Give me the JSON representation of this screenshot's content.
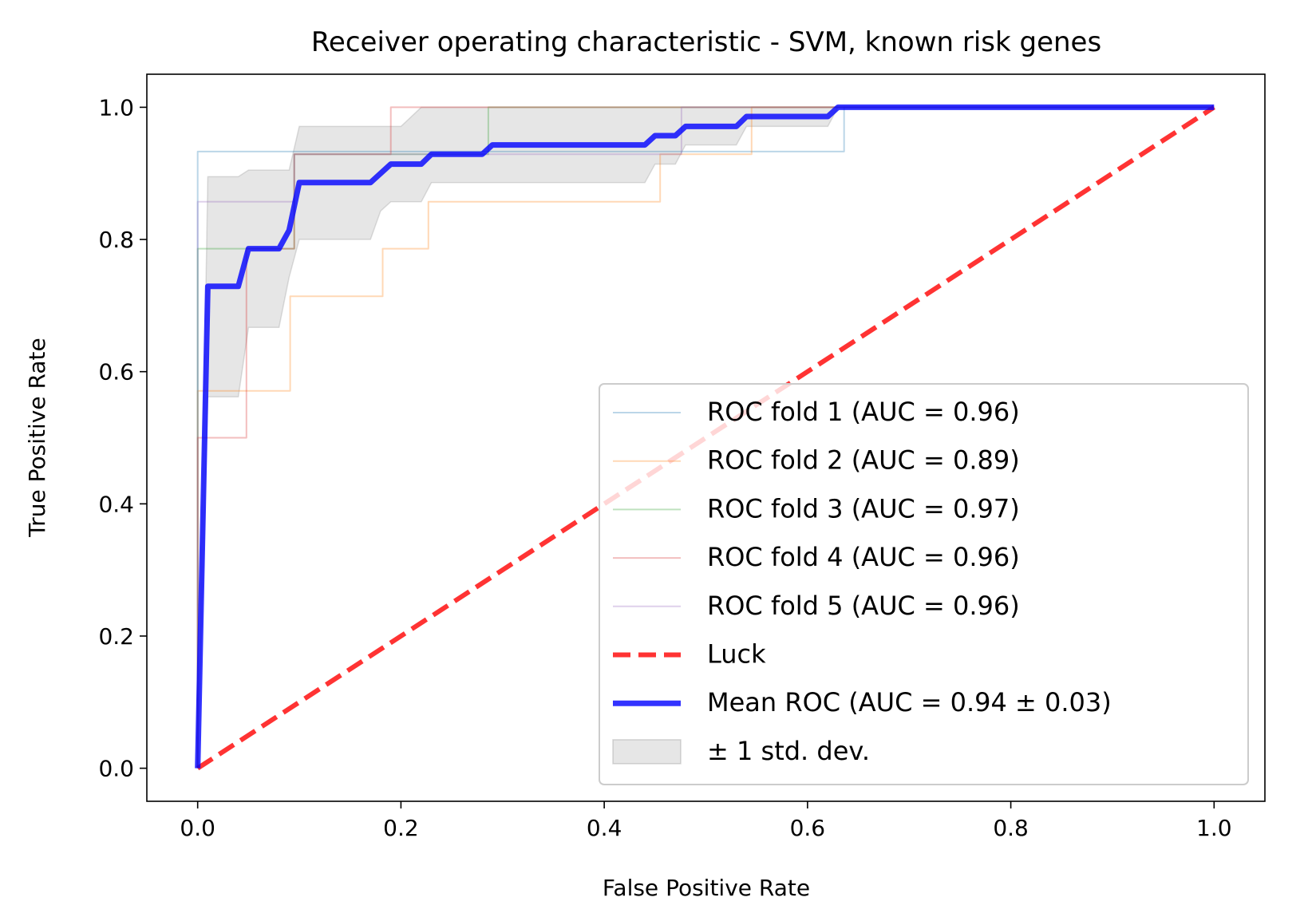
{
  "chart_data": {
    "type": "line",
    "title": "Receiver operating characteristic - SVM, known risk genes",
    "xlabel": "False Positive Rate",
    "ylabel": "True Positive Rate",
    "xlim": [
      -0.05,
      1.05
    ],
    "ylim": [
      -0.05,
      1.05
    ],
    "xticks": [
      0.0,
      0.2,
      0.4,
      0.6,
      0.8,
      1.0
    ],
    "yticks": [
      0.0,
      0.2,
      0.4,
      0.6,
      0.8,
      1.0
    ],
    "xtick_labels": [
      "0.0",
      "0.2",
      "0.4",
      "0.6",
      "0.8",
      "1.0"
    ],
    "ytick_labels": [
      "0.0",
      "0.2",
      "0.4",
      "0.6",
      "0.8",
      "1.0"
    ],
    "grid": false,
    "legend_position": "lower-right",
    "series": [
      {
        "name": "ROC fold 1 (AUC = 0.96)",
        "color": "#1f77b4",
        "opacity": 0.3,
        "linewidth": 1,
        "style": "solid",
        "x": [
          0.0,
          0.0,
          0.636,
          0.636,
          1.0
        ],
        "y": [
          0.0,
          0.933,
          0.933,
          1.0,
          1.0
        ]
      },
      {
        "name": "ROC fold 2 (AUC = 0.89)",
        "color": "#ff7f0e",
        "opacity": 0.3,
        "linewidth": 1,
        "style": "solid",
        "x": [
          0.0,
          0.0,
          0.091,
          0.091,
          0.182,
          0.182,
          0.227,
          0.227,
          0.455,
          0.455,
          0.545,
          0.545,
          1.0
        ],
        "y": [
          0.0,
          0.571,
          0.571,
          0.714,
          0.714,
          0.786,
          0.786,
          0.857,
          0.857,
          0.929,
          0.929,
          1.0,
          1.0
        ]
      },
      {
        "name": "ROC fold 3 (AUC = 0.97)",
        "color": "#2ca02c",
        "opacity": 0.3,
        "linewidth": 1,
        "style": "solid",
        "x": [
          0.0,
          0.0,
          0.095,
          0.095,
          0.286,
          0.286,
          1.0
        ],
        "y": [
          0.0,
          0.786,
          0.786,
          0.929,
          0.929,
          1.0,
          1.0
        ]
      },
      {
        "name": "ROC fold 4 (AUC = 0.96)",
        "color": "#d62728",
        "opacity": 0.3,
        "linewidth": 1,
        "style": "solid",
        "x": [
          0.0,
          0.0,
          0.048,
          0.048,
          0.095,
          0.095,
          0.19,
          0.19,
          1.0
        ],
        "y": [
          0.0,
          0.5,
          0.5,
          0.786,
          0.786,
          0.929,
          0.929,
          1.0,
          1.0
        ]
      },
      {
        "name": "ROC fold 5 (AUC = 0.96)",
        "color": "#9467bd",
        "opacity": 0.3,
        "linewidth": 1,
        "style": "solid",
        "x": [
          0.0,
          0.0,
          0.095,
          0.095,
          0.476,
          0.476,
          1.0
        ],
        "y": [
          0.0,
          0.857,
          0.857,
          0.929,
          0.929,
          1.0,
          1.0
        ]
      },
      {
        "name": "Luck",
        "color": "#ff0000",
        "opacity": 0.8,
        "linewidth": 3,
        "style": "dashed",
        "x": [
          0.0,
          1.0
        ],
        "y": [
          0.0,
          1.0
        ]
      },
      {
        "name": "Mean ROC (AUC = 0.94 ± 0.03)",
        "color": "#0000ff",
        "opacity": 0.8,
        "linewidth": 3.5,
        "style": "solid",
        "x": [
          0.0,
          0.01,
          0.04,
          0.05,
          0.08,
          0.09,
          0.1,
          0.17,
          0.19,
          0.22,
          0.23,
          0.28,
          0.29,
          0.44,
          0.45,
          0.47,
          0.48,
          0.53,
          0.54,
          0.62,
          0.63,
          1.0
        ],
        "y": [
          0.0,
          0.729,
          0.729,
          0.786,
          0.786,
          0.814,
          0.886,
          0.886,
          0.914,
          0.914,
          0.929,
          0.929,
          0.943,
          0.943,
          0.957,
          0.957,
          0.971,
          0.971,
          0.986,
          0.986,
          1.0,
          1.0
        ]
      }
    ],
    "band": {
      "name": "± 1 std. dev.",
      "color": "#808080",
      "opacity": 0.2,
      "x": [
        0.0,
        0.01,
        0.04,
        0.05,
        0.08,
        0.09,
        0.1,
        0.17,
        0.18,
        0.19,
        0.2,
        0.22,
        0.23,
        0.28,
        0.29,
        0.44,
        0.45,
        0.47,
        0.48,
        0.53,
        0.54,
        0.62,
        0.63,
        1.0
      ],
      "upper": [
        0.0,
        0.895,
        0.895,
        0.905,
        0.905,
        0.905,
        0.971,
        0.971,
        0.971,
        0.971,
        0.971,
        1.0,
        1.0,
        1.0,
        1.0,
        1.0,
        1.0,
        1.0,
        1.0,
        1.0,
        1.0,
        1.0,
        1.0,
        1.0
      ],
      "lower": [
        0.0,
        0.562,
        0.562,
        0.667,
        0.667,
        0.743,
        0.8,
        0.8,
        0.843,
        0.857,
        0.857,
        0.857,
        0.886,
        0.886,
        0.886,
        0.886,
        0.914,
        0.914,
        0.943,
        0.943,
        0.971,
        0.971,
        1.0,
        1.0
      ]
    }
  }
}
